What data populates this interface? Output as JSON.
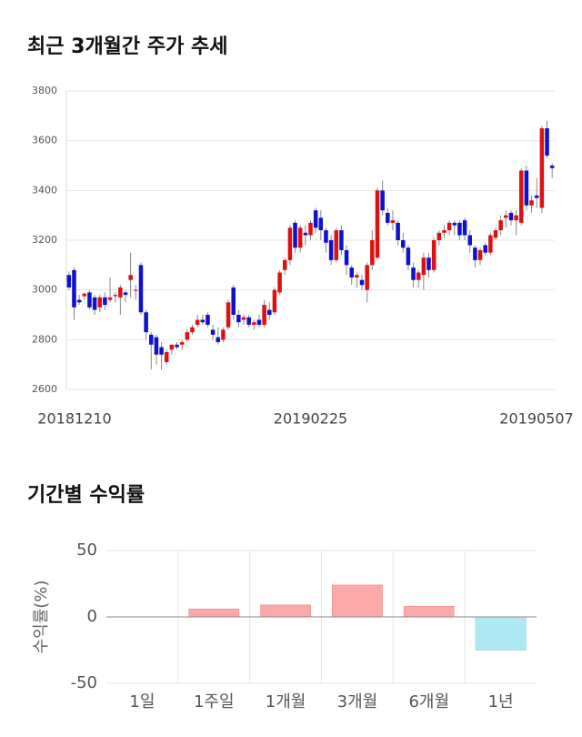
{
  "chart_data": [
    {
      "type": "candlestick",
      "title": "최근 3개월간 주가 추세",
      "categories": [
        "20181210",
        null,
        null,
        null,
        null,
        null,
        null,
        null,
        null,
        null,
        null,
        null,
        null,
        null,
        null,
        null,
        null,
        null,
        null,
        null,
        null,
        null,
        null,
        null,
        null,
        null,
        null,
        null,
        null,
        null,
        null,
        null,
        null,
        null,
        null,
        null,
        null,
        null,
        null,
        null,
        null,
        null,
        null,
        null,
        null,
        null,
        null,
        "20190225",
        null,
        null,
        null,
        null,
        null,
        null,
        null,
        null,
        null,
        null,
        null,
        null,
        null,
        null,
        null,
        null,
        null,
        null,
        null,
        null,
        null,
        null,
        null,
        null,
        null,
        null,
        null,
        null,
        null,
        null,
        null,
        null,
        null,
        null,
        null,
        null,
        null,
        null,
        null,
        null,
        null,
        null,
        null,
        null,
        null,
        null,
        "20190507"
      ],
      "open": [
        3060,
        3080,
        2960,
        2975,
        2990,
        2970,
        2930,
        2970,
        2960,
        2975,
        2970,
        2990,
        3040,
        3000,
        3100,
        2910,
        2820,
        2810,
        2770,
        2710,
        2760,
        2780,
        2780,
        2800,
        2830,
        2860,
        2880,
        2900,
        2840,
        2810,
        2800,
        2850,
        3010,
        2900,
        2880,
        2890,
        2860,
        2880,
        2860,
        2920,
        2910,
        2990,
        3080,
        3120,
        3270,
        3170,
        3230,
        3220,
        3320,
        3290,
        3240,
        3200,
        3120,
        3240,
        3160,
        3090,
        3050,
        3040,
        3000,
        3100,
        3130,
        3400,
        3310,
        3270,
        3270,
        3200,
        3170,
        3090,
        3040,
        3060,
        3130,
        3080,
        3200,
        3230,
        3240,
        3270,
        3270,
        3280,
        3220,
        3170,
        3120,
        3180,
        3150,
        3210,
        3240,
        3290,
        3310,
        3280,
        3270,
        3480,
        3340,
        3380,
        3330,
        3650,
        3500
      ],
      "high": [
        3075,
        3090,
        2980,
        2990,
        3000,
        2980,
        2980,
        2990,
        3050,
        2990,
        3020,
        3000,
        3150,
        3020,
        3110,
        2920,
        2830,
        2820,
        2790,
        2760,
        2780,
        2790,
        2800,
        2840,
        2860,
        2900,
        2900,
        2910,
        2860,
        2850,
        2850,
        2960,
        3020,
        2920,
        2900,
        2900,
        2880,
        2900,
        2960,
        2950,
        3010,
        3080,
        3130,
        3260,
        3280,
        3260,
        3260,
        3280,
        3330,
        3320,
        3250,
        3220,
        3250,
        3260,
        3180,
        3100,
        3070,
        3060,
        3110,
        3240,
        3410,
        3440,
        3330,
        3320,
        3280,
        3230,
        3180,
        3110,
        3080,
        3150,
        3150,
        3210,
        3240,
        3260,
        3280,
        3280,
        3280,
        3290,
        3240,
        3180,
        3170,
        3190,
        3230,
        3250,
        3300,
        3320,
        3320,
        3320,
        3490,
        3500,
        3380,
        3450,
        3660,
        3680,
        3510
      ],
      "low": [
        3000,
        2880,
        2940,
        2960,
        2920,
        2900,
        2910,
        2920,
        2950,
        2950,
        2900,
        2950,
        2970,
        2960,
        2900,
        2800,
        2680,
        2700,
        2680,
        2700,
        2740,
        2760,
        2760,
        2790,
        2820,
        2850,
        2860,
        2850,
        2800,
        2780,
        2790,
        2840,
        2880,
        2850,
        2860,
        2850,
        2840,
        2850,
        2850,
        2880,
        2900,
        2980,
        3060,
        3100,
        3150,
        3150,
        3180,
        3200,
        3230,
        3200,
        3150,
        3100,
        3110,
        3140,
        3060,
        3020,
        3010,
        3000,
        2950,
        3080,
        3120,
        3300,
        3260,
        3240,
        3180,
        3150,
        3080,
        3010,
        3010,
        3000,
        3050,
        3070,
        3180,
        3210,
        3220,
        3220,
        3200,
        3200,
        3150,
        3090,
        3100,
        3140,
        3140,
        3200,
        3220,
        3250,
        3260,
        3220,
        3260,
        3320,
        3310,
        3330,
        3310,
        3530,
        3450
      ],
      "close": [
        3010,
        2930,
        2950,
        2985,
        2930,
        2920,
        2970,
        2940,
        2970,
        2980,
        3010,
        2980,
        3060,
        3000,
        2910,
        2830,
        2780,
        2740,
        2740,
        2750,
        2780,
        2770,
        2790,
        2830,
        2850,
        2880,
        2870,
        2860,
        2820,
        2790,
        2840,
        2950,
        2900,
        2870,
        2890,
        2860,
        2870,
        2860,
        2940,
        2900,
        3000,
        3070,
        3120,
        3250,
        3170,
        3250,
        3220,
        3270,
        3250,
        3240,
        3190,
        3120,
        3240,
        3160,
        3100,
        3050,
        3060,
        3020,
        3100,
        3200,
        3400,
        3320,
        3270,
        3280,
        3200,
        3170,
        3100,
        3040,
        3070,
        3130,
        3080,
        3200,
        3230,
        3240,
        3270,
        3260,
        3220,
        3220,
        3180,
        3120,
        3160,
        3150,
        3220,
        3240,
        3280,
        3300,
        3280,
        3300,
        3480,
        3340,
        3360,
        3370,
        3650,
        3540,
        3490
      ],
      "up_color": "#dd1111",
      "down_color": "#1111cc",
      "ylim": [
        2600,
        3800
      ],
      "yticks": [
        2600,
        2800,
        3000,
        3200,
        3400,
        3600,
        3800
      ],
      "grid": true
    },
    {
      "type": "bar",
      "title": "기간별 수익률",
      "ylabel": "수익률(%)",
      "categories": [
        "1일",
        "1주일",
        "1개월",
        "3개월",
        "6개월",
        "1년"
      ],
      "values": [
        0,
        6,
        9,
        24,
        8,
        -25
      ],
      "positive_color": "#fba8a8",
      "negative_color": "#aee9f4",
      "ylim": [
        -50,
        50
      ],
      "yticks": [
        -50,
        0,
        50
      ],
      "grid": true
    }
  ]
}
